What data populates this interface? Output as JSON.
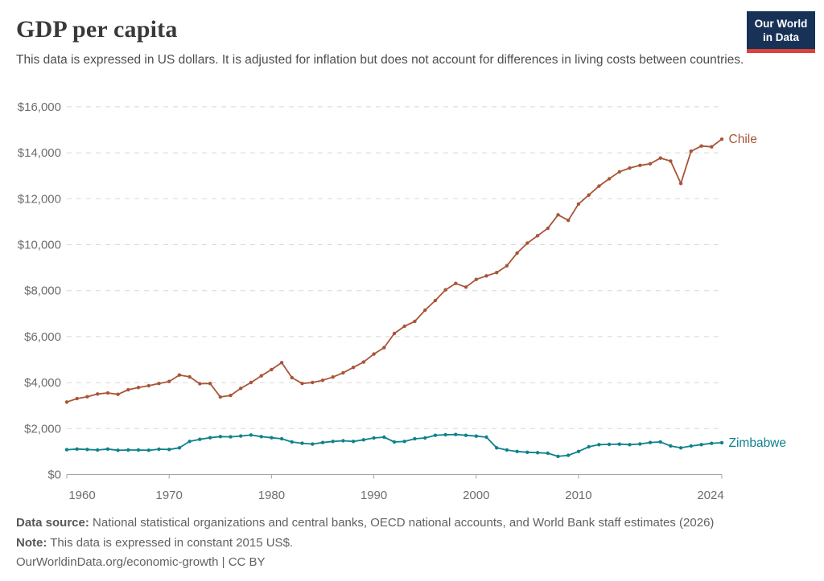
{
  "header": {
    "title": "GDP per capita",
    "subtitle": "This data is expressed in US dollars. It is adjusted for inflation but does not account for differences in living costs between countries.",
    "logo_line1": "Our World",
    "logo_line2": "in Data",
    "logo_bg_color": "#183257",
    "logo_stripe_color": "#d7443a"
  },
  "chart_data": {
    "type": "line",
    "title": "GDP per capita",
    "xlabel": "",
    "ylabel": "",
    "grid": "horizontal-dashed",
    "legend_position": "line-end-labels",
    "xlim": [
      1960,
      2024
    ],
    "ylim": [
      0,
      16000
    ],
    "xticks": [
      1960,
      1970,
      1980,
      1990,
      2000,
      2010,
      2024
    ],
    "xtick_labels": [
      "1960",
      "1970",
      "1980",
      "1990",
      "2000",
      "2010",
      "2024"
    ],
    "yticks": [
      0,
      2000,
      4000,
      6000,
      8000,
      10000,
      12000,
      14000,
      16000
    ],
    "ytick_labels": [
      "$0",
      "$2,000",
      "$4,000",
      "$6,000",
      "$8,000",
      "$10,000",
      "$12,000",
      "$14,000",
      "$16,000"
    ],
    "x": [
      1960,
      1961,
      1962,
      1963,
      1964,
      1965,
      1966,
      1967,
      1968,
      1969,
      1970,
      1971,
      1972,
      1973,
      1974,
      1975,
      1976,
      1977,
      1978,
      1979,
      1980,
      1981,
      1982,
      1983,
      1984,
      1985,
      1986,
      1987,
      1988,
      1989,
      1990,
      1991,
      1992,
      1993,
      1994,
      1995,
      1996,
      1997,
      1998,
      1999,
      2000,
      2001,
      2002,
      2003,
      2004,
      2005,
      2006,
      2007,
      2008,
      2009,
      2010,
      2011,
      2012,
      2013,
      2014,
      2015,
      2016,
      2017,
      2018,
      2019,
      2020,
      2021,
      2022,
      2023,
      2024
    ],
    "series": [
      {
        "name": "Chile",
        "color": "#A85538",
        "values": [
          3155,
          3305,
          3385,
          3505,
          3550,
          3490,
          3690,
          3785,
          3865,
          3960,
          4050,
          4330,
          4250,
          3950,
          3960,
          3375,
          3440,
          3750,
          4005,
          4295,
          4565,
          4870,
          4215,
          3960,
          4005,
          4100,
          4240,
          4425,
          4660,
          4890,
          5240,
          5520,
          6135,
          6450,
          6660,
          7150,
          7570,
          8035,
          8315,
          8155,
          8490,
          8645,
          8785,
          9085,
          9635,
          10065,
          10390,
          10715,
          11300,
          11060,
          11770,
          12160,
          12550,
          12870,
          13170,
          13335,
          13450,
          13520,
          13770,
          13640,
          12665,
          14065,
          14295,
          14260,
          14590
        ]
      },
      {
        "name": "Zimbabwe",
        "color": "#0E828C",
        "values": [
          1080,
          1110,
          1090,
          1065,
          1110,
          1055,
          1065,
          1065,
          1055,
          1100,
          1090,
          1160,
          1440,
          1530,
          1600,
          1650,
          1640,
          1675,
          1720,
          1650,
          1600,
          1555,
          1415,
          1360,
          1325,
          1390,
          1440,
          1470,
          1440,
          1510,
          1590,
          1625,
          1415,
          1440,
          1555,
          1590,
          1705,
          1730,
          1740,
          1705,
          1670,
          1625,
          1160,
          1065,
          1005,
          970,
          950,
          925,
          790,
          835,
          1005,
          1205,
          1300,
          1310,
          1320,
          1300,
          1330,
          1390,
          1420,
          1240,
          1160,
          1240,
          1300,
          1355,
          1385
        ]
      }
    ]
  },
  "footer": {
    "data_source_label": "Data source:",
    "data_source_text": "National statistical organizations and central banks, OECD national accounts, and World Bank staff estimates (2026)",
    "note_label": "Note:",
    "note_text": "This data is expressed in constant 2015 US$.",
    "citation": "OurWorldinData.org/economic-growth | CC BY"
  }
}
